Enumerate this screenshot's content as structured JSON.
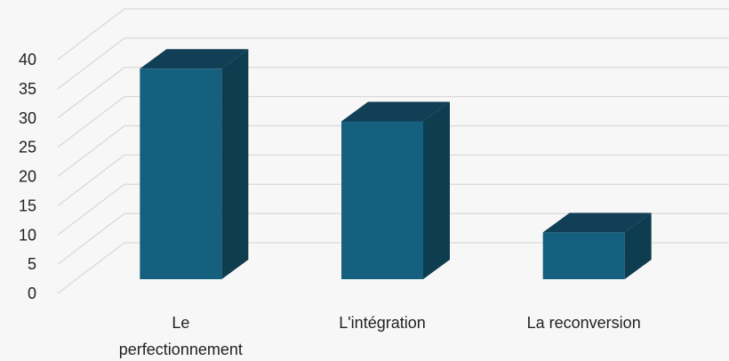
{
  "chart_data": {
    "type": "bar",
    "style": "3d-column",
    "categories": [
      "Le perfectionnement",
      "L'intégration",
      "La reconversion"
    ],
    "category_lines": [
      [
        "Le",
        "perfectionnement"
      ],
      [
        "L'intégration"
      ],
      [
        "La reconversion"
      ]
    ],
    "values": [
      36,
      27,
      8
    ],
    "ylim": [
      0,
      40
    ],
    "yticks": [
      "0",
      "5",
      "10",
      "15",
      "20",
      "25",
      "30",
      "35",
      "40"
    ],
    "grid": true,
    "legend": "none",
    "title": "",
    "xlabel": "",
    "ylabel": "",
    "colors": {
      "front": "#15607e",
      "side": "#0e3d50",
      "top": "#113f56",
      "grid": "#d9d9d9",
      "background": "#f7f7f7"
    }
  }
}
